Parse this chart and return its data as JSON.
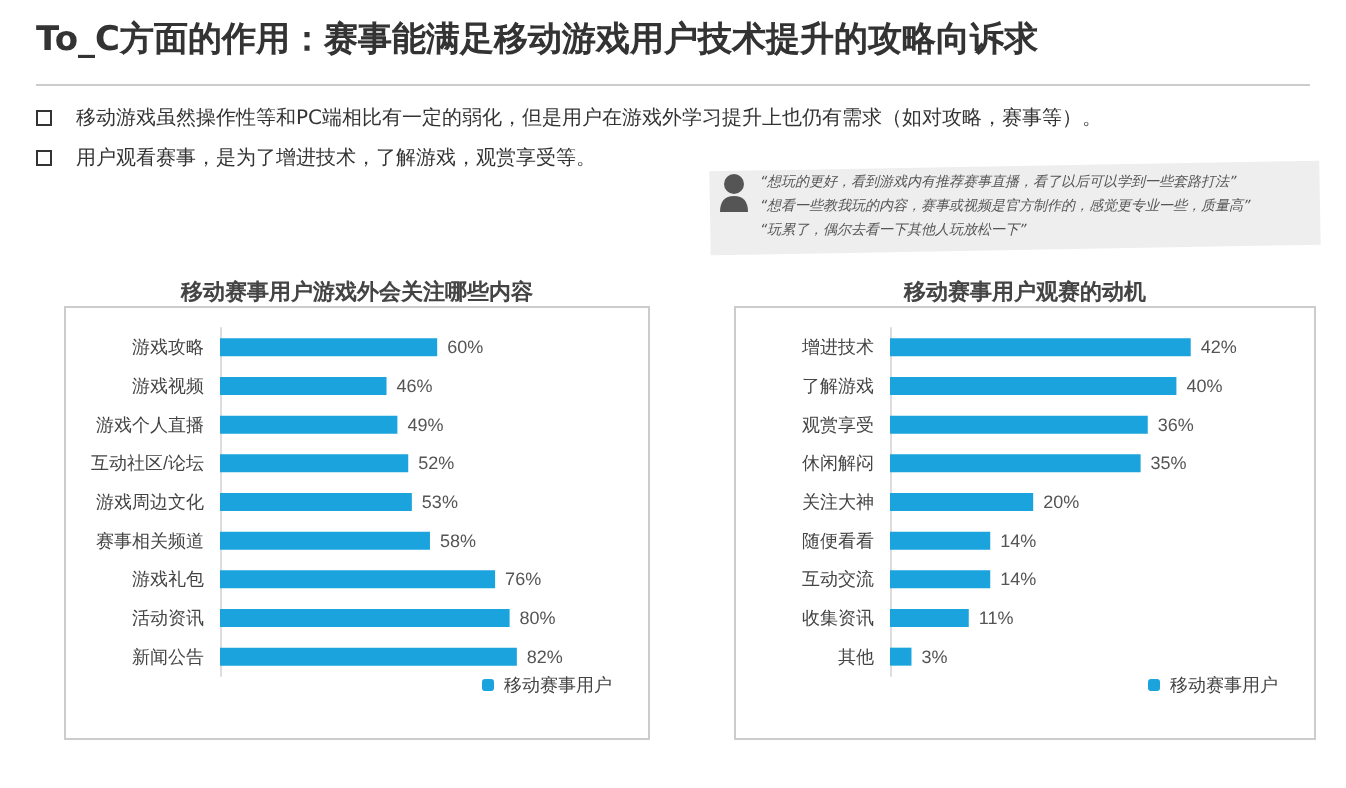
{
  "chart_data": [
    {
      "type": "other",
      "title": "To_C方面的作用：赛事能满足移动游戏用户技术提升的攻略向诉求",
      "annotations": [
        "移动游戏虽然操作性等和PC端相比有一定的弱化，但是用户在游戏外学习提升上也仍有需求（如对攻略，赛事等）。",
        "用户观看赛事，是为了增进技术，了解游戏，观赏享受等。",
        "“想玩的更好，看到游戏内有推荐赛事直播，看了以后可以学到一些套路打法”",
        "“想看一些教我玩的内容，赛事或视频是官方制作的，感觉更专业一些，质量高”",
        "“玩累了，偶尔去看一下其他人玩放松一下”"
      ]
    },
    {
      "type": "bar",
      "orientation": "horizontal",
      "title": "移动赛事用户游戏外会关注哪些内容",
      "legend": "bottom right",
      "categories": [
        "游戏攻略",
        "游戏视频",
        "游戏个人直播",
        "互动社区/论坛",
        "游戏周边文化",
        "赛事相关频道",
        "游戏礼包",
        "活动资讯",
        "新闻公告"
      ],
      "series": [
        {
          "name": "移动赛事用户",
          "color": "#1aa3dc",
          "values": [
            60,
            46,
            49,
            52,
            53,
            58,
            76,
            80,
            82
          ],
          "value_labels": [
            "60%",
            "46%",
            "49%",
            "52%",
            "53%",
            "58%",
            "76%",
            "80%",
            "82%"
          ]
        }
      ]
    },
    {
      "type": "bar",
      "orientation": "horizontal",
      "title": "移动赛事用户观赛的动机",
      "legend": "bottom right",
      "categories": [
        "增进技术",
        "了解游戏",
        "观赏享受",
        "休闲解闷",
        "关注大神",
        "随便看看",
        "互动交流",
        "收集资讯",
        "其他"
      ],
      "series": [
        {
          "name": "移动赛事用户",
          "color": "#1aa3dc",
          "values": [
            42,
            40,
            36,
            35,
            20,
            14,
            14,
            11,
            3
          ],
          "value_labels": [
            "42%",
            "40%",
            "36%",
            "35%",
            "20%",
            "14%",
            "14%",
            "11%",
            "3%"
          ]
        }
      ]
    }
  ]
}
